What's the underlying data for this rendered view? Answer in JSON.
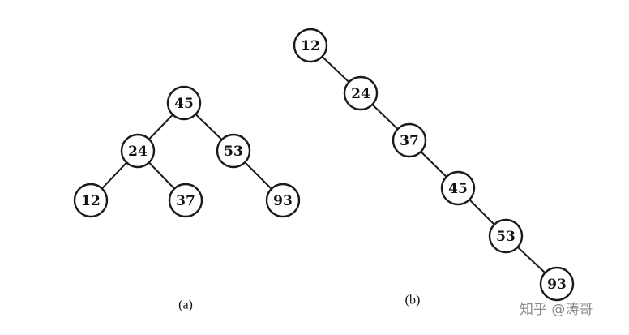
{
  "diagrams": [
    {
      "id": "a",
      "caption": "(a)",
      "nodes": [
        {
          "id": "a45",
          "label": "45"
        },
        {
          "id": "a24",
          "label": "24"
        },
        {
          "id": "a53",
          "label": "53"
        },
        {
          "id": "a12",
          "label": "12"
        },
        {
          "id": "a37",
          "label": "37"
        },
        {
          "id": "a93",
          "label": "93"
        }
      ],
      "edges": [
        [
          "a45",
          "a24"
        ],
        [
          "a45",
          "a53"
        ],
        [
          "a24",
          "a12"
        ],
        [
          "a24",
          "a37"
        ],
        [
          "a53",
          "a93"
        ]
      ]
    },
    {
      "id": "b",
      "caption": "(b)",
      "nodes": [
        {
          "id": "b12",
          "label": "12"
        },
        {
          "id": "b24",
          "label": "24"
        },
        {
          "id": "b37",
          "label": "37"
        },
        {
          "id": "b45",
          "label": "45"
        },
        {
          "id": "b53",
          "label": "53"
        },
        {
          "id": "b93",
          "label": "93"
        }
      ],
      "edges": [
        [
          "b12",
          "b24"
        ],
        [
          "b24",
          "b37"
        ],
        [
          "b37",
          "b45"
        ],
        [
          "b45",
          "b53"
        ],
        [
          "b53",
          "b93"
        ]
      ]
    }
  ],
  "watermark": "知乎 @涛哥"
}
